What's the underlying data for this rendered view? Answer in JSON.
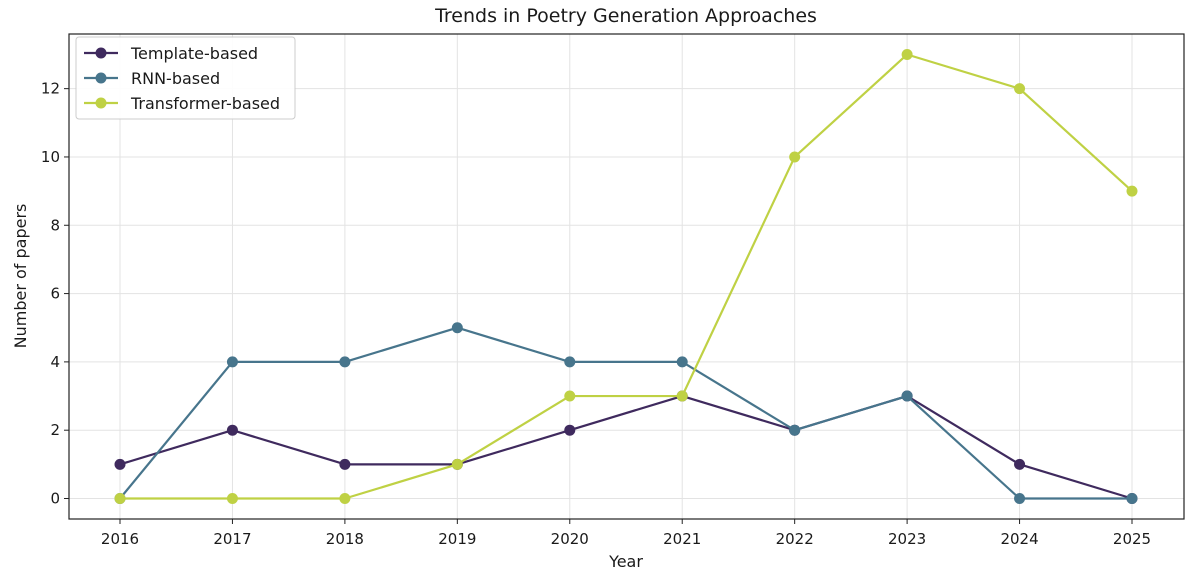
{
  "chart_data": {
    "type": "line",
    "title": "Trends in Poetry Generation Approaches",
    "xlabel": "Year",
    "ylabel": "Number of papers",
    "x": [
      "2016",
      "2017",
      "2018",
      "2019",
      "2020",
      "2021",
      "2022",
      "2023",
      "2024",
      "2025"
    ],
    "y_ticks": [
      "0",
      "2",
      "4",
      "6",
      "8",
      "10",
      "12"
    ],
    "ylim": [
      -0.6,
      13.6
    ],
    "grid": true,
    "legend_position": "top-left",
    "series": [
      {
        "name": "Template-based",
        "color": "#3f2a5e",
        "values": [
          1,
          2,
          1,
          1,
          2,
          3,
          2,
          3,
          1,
          0
        ]
      },
      {
        "name": "RNN-based",
        "color": "#47758c",
        "values": [
          0,
          4,
          4,
          5,
          4,
          4,
          2,
          3,
          0,
          0
        ]
      },
      {
        "name": "Transformer-based",
        "color": "#bfd144",
        "values": [
          0,
          0,
          0,
          1,
          3,
          3,
          10,
          13,
          12,
          9
        ]
      }
    ]
  }
}
